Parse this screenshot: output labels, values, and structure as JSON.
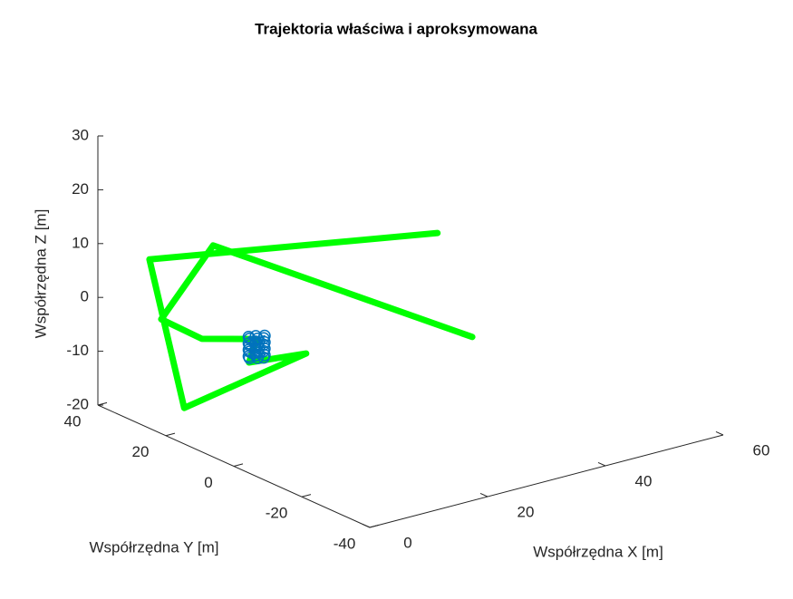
{
  "chart_data": {
    "type": "line3d",
    "title": "Trajektoria właściwa i aproksymowana",
    "xlabel": "Współrzędna X [m]",
    "ylabel": "Współrzędna Y [m]",
    "zlabel": "Współrzędna Z [m]",
    "xlim": [
      0,
      60
    ],
    "ylim": [
      -40,
      40
    ],
    "zlim": [
      -20,
      30
    ],
    "xticks": [
      0,
      20,
      40,
      60
    ],
    "yticks": [
      -40,
      -20,
      0,
      20,
      40
    ],
    "zticks": [
      -20,
      -10,
      0,
      10,
      20,
      30
    ],
    "series": [
      {
        "color": "#00ff00",
        "x": [
          54.9,
          10.9,
          2.1,
          9.0,
          18.3,
          17.0,
          26.7,
          6.0,
          0.1,
          49.0
        ],
        "y": [
          25,
          25,
          25,
          25,
          25,
          25,
          25,
          25,
          25,
          25
        ],
        "z": [
          -18.8,
          10.8,
          -0.4,
          -6.0,
          -8.7,
          -12.7,
          -13.8,
          -18.0,
          11.3,
          2.2
        ]
      },
      {
        "color": "#0072bd",
        "x": [
          19.5,
          18.9,
          17.7,
          17.1,
          17.7,
          18.9,
          19.5,
          18.9,
          17.7,
          17.1,
          17.7,
          18.9,
          19.5,
          18.9,
          17.7,
          17.1,
          17.7,
          18.9,
          19.5,
          18.9,
          17.7,
          17.1,
          17.7,
          18.9
        ],
        "y": [
          25,
          26.3,
          26.3,
          25,
          23.7,
          23.7,
          25,
          26.3,
          26.3,
          25,
          23.7,
          23.7,
          25,
          26.3,
          26.3,
          25,
          23.7,
          23.7,
          25,
          26.3,
          26.3,
          25,
          23.7,
          23.7
        ],
        "z": [
          -12.5,
          -12.3,
          -12.1,
          -11.9,
          -11.7,
          -11.5,
          -11.3,
          -11.1,
          -10.9,
          -10.7,
          -10.5,
          -10.3,
          -10.1,
          -9.9,
          -9.7,
          -9.5,
          -9.3,
          -9.1,
          -8.9,
          -8.7,
          -8.5,
          -8.3,
          -8.1,
          -7.9
        ]
      }
    ]
  }
}
